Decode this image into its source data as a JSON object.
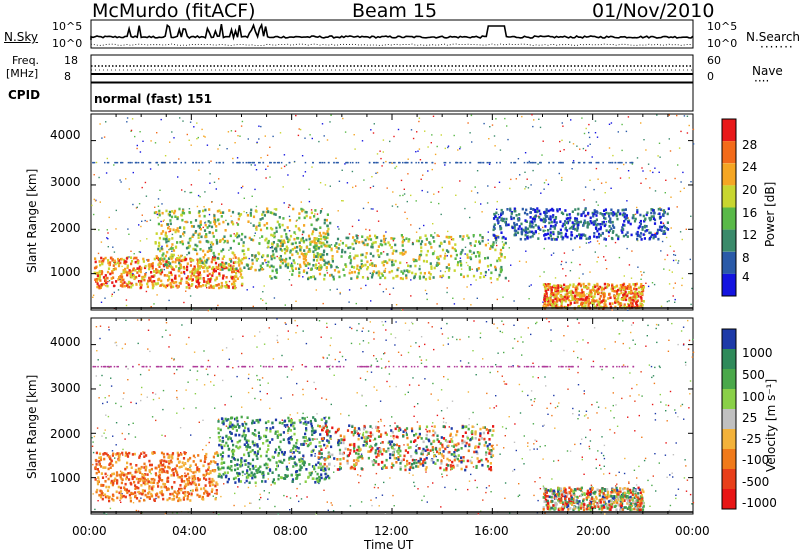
{
  "header": {
    "station": "McMurdo (fitACF)",
    "beam": "Beam 15",
    "date": "01/Nov/2010"
  },
  "strip": {
    "nsky_label": "N.Sky",
    "nsky_top": "10^5",
    "nsky_bottom": "10^0",
    "nsearch_label": "N.Search",
    "nsearch_top": "10^5",
    "nsearch_bottom": "10^0",
    "freq_label": "Freq.",
    "freq_unit": "[MHz]",
    "freq_top": "18",
    "freq_bottom": "8",
    "nave_label": "Nave",
    "nave_top": "60",
    "nave_bottom": "0",
    "cpid_label": "CPID",
    "cpid_value": "normal (fast) 151"
  },
  "panels": {
    "power": {
      "ylabel": "Slant Range [km]",
      "yticks": [
        "4000",
        "3000",
        "2000",
        "1000"
      ],
      "colorbar_label": "Power [dB]",
      "colorbar_ticks": [
        "28",
        "24",
        "20",
        "16",
        "12",
        "8",
        "4"
      ],
      "colors": [
        "#e8191a",
        "#f36b1a",
        "#f5a623",
        "#c8d630",
        "#59b948",
        "#3a8a6a",
        "#2a5aa8",
        "#1414e0"
      ]
    },
    "velocity": {
      "ylabel": "Slant Range [km]",
      "yticks": [
        "4000",
        "3000",
        "2000",
        "1000"
      ],
      "colorbar_label": "Velocity [m s⁻¹]",
      "colorbar_ticks": [
        "1000",
        "500",
        "100",
        "25",
        "-25",
        "-100",
        "-500",
        "-1000"
      ],
      "colors": [
        "#1d3aa8",
        "#2f8a5a",
        "#4aa84a",
        "#8ad048",
        "#c0c0c0",
        "#f3b23a",
        "#f07a1a",
        "#e83f1a",
        "#e81515"
      ]
    }
  },
  "xaxis": {
    "ticks": [
      "00:00",
      "04:00",
      "08:00",
      "12:00",
      "16:00",
      "20:00",
      "00:00"
    ],
    "label": "Time UT"
  },
  "chart_data": [
    {
      "type": "heatmap",
      "title": "Power",
      "xlabel": "Time UT",
      "ylabel": "Slant Range [km]",
      "xlim": [
        0,
        24
      ],
      "ylim": [
        180,
        4600
      ],
      "colorbar": {
        "label": "Power [dB]",
        "ticks": [
          28,
          24,
          20,
          16,
          12,
          8,
          4
        ],
        "range": [
          0,
          30
        ]
      },
      "regions": [
        {
          "x0": 0.1,
          "x1": 6.0,
          "y0": 700,
          "y1": 1400,
          "level": "high"
        },
        {
          "x0": 2.5,
          "x1": 9.5,
          "y0": 1100,
          "y1": 2500,
          "level": "mid"
        },
        {
          "x0": 7.0,
          "x1": 16.5,
          "y0": 900,
          "y1": 1900,
          "level": "mid"
        },
        {
          "x0": 18.0,
          "x1": 22.0,
          "y0": 250,
          "y1": 800,
          "level": "high"
        },
        {
          "x0": 16.0,
          "x1": 23.0,
          "y0": 1800,
          "y1": 2500,
          "level": "low"
        }
      ]
    },
    {
      "type": "heatmap",
      "title": "Velocity",
      "xlabel": "Time UT",
      "ylabel": "Slant Range [km]",
      "xlim": [
        0,
        24
      ],
      "ylim": [
        180,
        4600
      ],
      "colorbar": {
        "label": "Velocity [m s⁻¹]",
        "ticks": [
          1000,
          500,
          100,
          25,
          -25,
          -100,
          -500,
          -1000
        ]
      },
      "regions": [
        {
          "x0": 0.1,
          "x1": 5.0,
          "y0": 500,
          "y1": 1600,
          "level": "negative"
        },
        {
          "x0": 5.0,
          "x1": 9.5,
          "y0": 900,
          "y1": 2400,
          "level": "positive"
        },
        {
          "x0": 9.0,
          "x1": 16.0,
          "y0": 1200,
          "y1": 2200,
          "level": "mixed"
        },
        {
          "x0": 18.0,
          "x1": 22.0,
          "y0": 300,
          "y1": 800,
          "level": "mixed"
        }
      ]
    }
  ]
}
